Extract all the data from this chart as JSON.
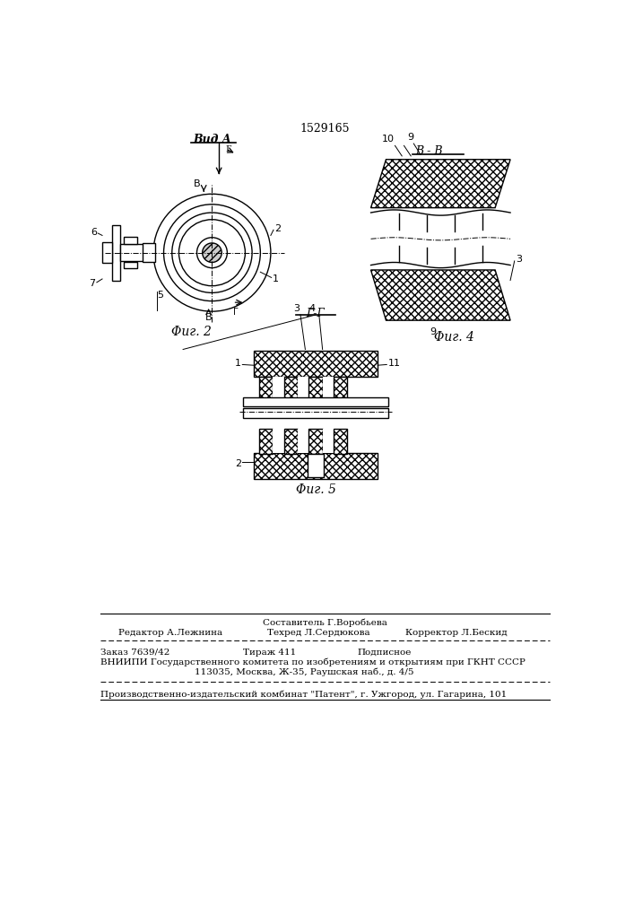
{
  "patent_number": "1529165",
  "background_color": "#ffffff",
  "line_color": "#000000",
  "fig2_label": "Φиг. 2",
  "fig4_label": "Φиг. 4",
  "fig5_label": "Φиг. 5",
  "vid_a_label": "Вид A",
  "b_b_label": "B - B",
  "g_g_label": "Г-Г",
  "footer_sostavitel": "Составитель Г.Воробьева",
  "footer_redaktor": "Редактор А.Лежнина",
  "footer_tehred": "Техред Л.Сердюкова",
  "footer_korrektor": "Корректор Л.Бескид",
  "footer_zakaz": "Заказ 7639/42",
  "footer_tiraj": "Тираж 411",
  "footer_podpisnoe": "Подписное",
  "footer_vniipи_line1": "ВНИИПИ Государственного комитета по изобретениям и открытиям при ГКНТ СССР",
  "footer_vniipи_line2": "113035, Москва, Ж-35, Раушская наб., д. 4/5",
  "footer_patent": "Производственно-издательский комбинат \"Патент\", г. Ужгород, ул. Гагарина, 101"
}
